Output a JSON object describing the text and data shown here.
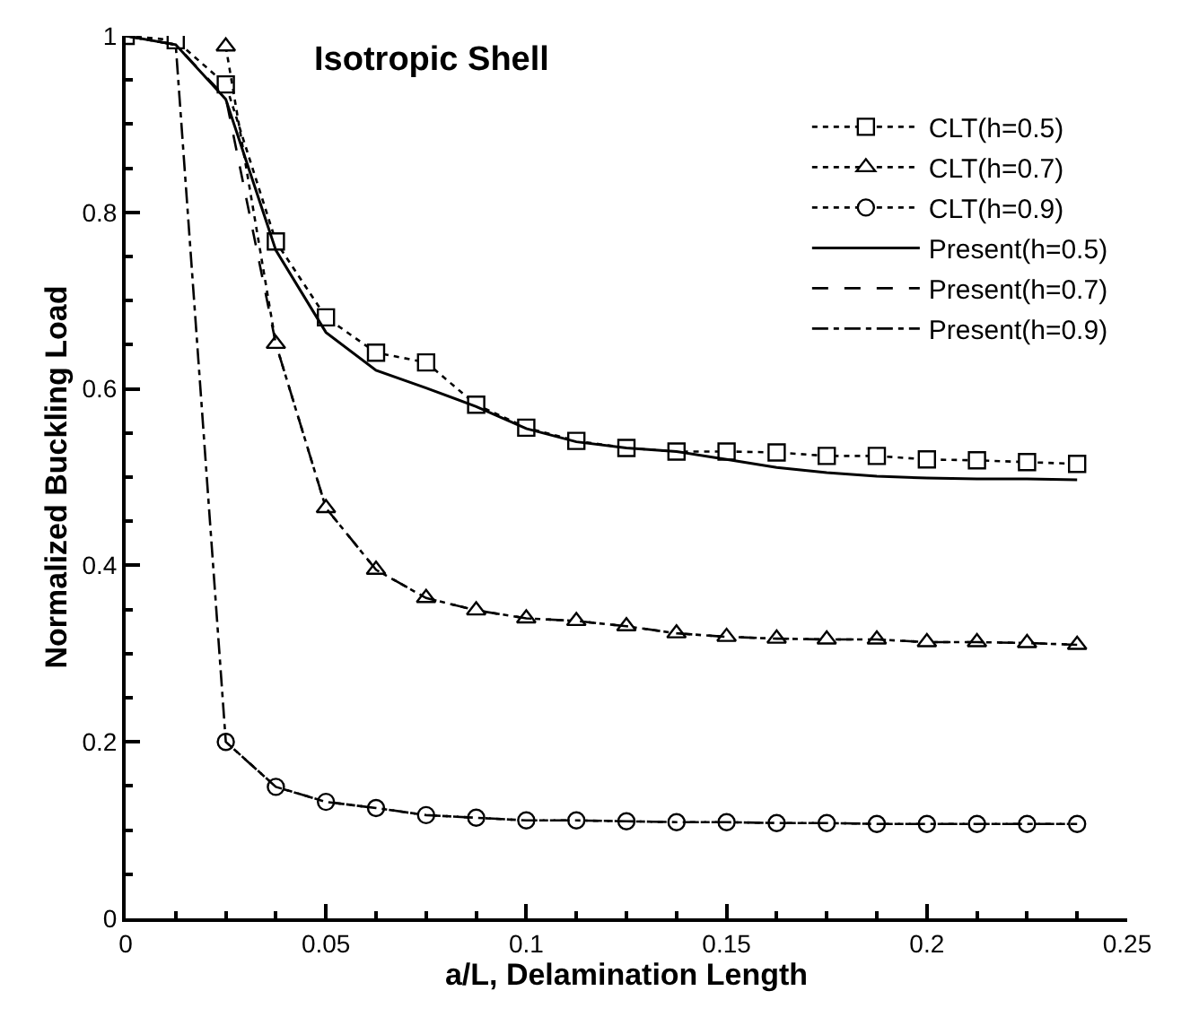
{
  "chart_data": {
    "type": "line",
    "title": "Isotropic Shell",
    "xlabel": "a/L, Delamination Length",
    "ylabel": "Normalized Buckling Load",
    "x": [
      0,
      0.0125,
      0.025,
      0.0375,
      0.05,
      0.0625,
      0.075,
      0.0875,
      0.1,
      0.1125,
      0.125,
      0.1375,
      0.15,
      0.1625,
      0.175,
      0.1875,
      0.2,
      0.2125,
      0.225,
      0.2375
    ],
    "series": [
      {
        "name": "CLT(h=0.5)",
        "color": "#000000",
        "marker": "square",
        "line_style": "dotted",
        "values": [
          1,
          0.995,
          0.945,
          0.767,
          0.681,
          0.641,
          0.63,
          0.582,
          0.556,
          0.541,
          0.533,
          0.529,
          0.529,
          0.528,
          0.524,
          0.524,
          0.52,
          0.519,
          0.517,
          0.515
        ]
      },
      {
        "name": "CLT(h=0.7)",
        "color": "#000000",
        "marker": "triangle",
        "line_style": "dotted",
        "values": [
          null,
          null,
          0.988,
          0.651,
          0.465,
          0.395,
          0.363,
          0.349,
          0.34,
          0.337,
          0.331,
          0.323,
          0.319,
          0.317,
          0.316,
          0.316,
          0.313,
          0.313,
          0.312,
          0.31
        ]
      },
      {
        "name": "CLT(h=0.9)",
        "color": "#000000",
        "marker": "circle",
        "line_style": "dotted",
        "values": [
          null,
          null,
          0.2,
          0.149,
          0.132,
          0.125,
          0.117,
          0.114,
          0.111,
          0.111,
          0.11,
          0.109,
          0.109,
          0.108,
          0.108,
          0.107,
          0.107,
          0.107,
          0.107,
          0.107
        ]
      },
      {
        "name": "Present(h=0.5)",
        "color": "#000000",
        "marker": "none",
        "line_style": "solid",
        "values": [
          1,
          0.99,
          0.928,
          0.757,
          0.664,
          0.621,
          0.601,
          0.58,
          0.555,
          0.54,
          0.533,
          0.529,
          0.52,
          0.511,
          0.505,
          0.501,
          0.499,
          0.498,
          0.498,
          0.497
        ]
      },
      {
        "name": "Present(h=0.7)",
        "color": "#000000",
        "marker": "none",
        "line_style": "dashed",
        "values": [
          1,
          0.99,
          0.93,
          0.651,
          0.465,
          0.395,
          0.363,
          0.349,
          0.34,
          0.337,
          0.331,
          0.323,
          0.319,
          0.317,
          0.316,
          0.316,
          0.313,
          0.313,
          0.312,
          0.31
        ]
      },
      {
        "name": "Present(h=0.9)",
        "color": "#000000",
        "marker": "none",
        "line_style": "dashdot",
        "values": [
          1,
          0.99,
          0.2,
          0.149,
          0.132,
          0.125,
          0.117,
          0.114,
          0.111,
          0.111,
          0.11,
          0.109,
          0.109,
          0.108,
          0.108,
          0.107,
          0.107,
          0.107,
          0.107,
          0.107
        ]
      }
    ],
    "xlim": [
      0,
      0.25
    ],
    "xticks": [
      0,
      0.05,
      0.1,
      0.15,
      0.2,
      0.25
    ],
    "ylim": [
      0,
      1
    ],
    "yticks": [
      0,
      0.2,
      0.4,
      0.6,
      0.8,
      1
    ],
    "legend": "top right"
  }
}
